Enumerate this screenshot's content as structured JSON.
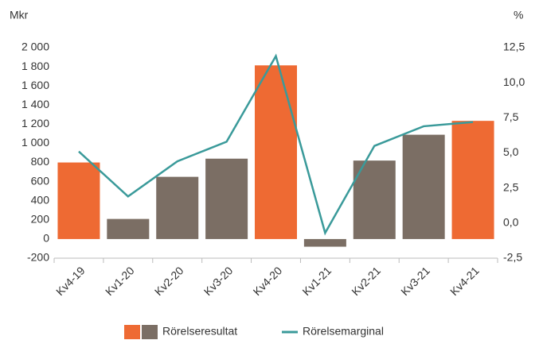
{
  "chart_data": {
    "type": "bar_line",
    "y_label": "Mkr",
    "y2_label": "%",
    "categories": [
      "Kv4-19",
      "Kv1-20",
      "Kv2-20",
      "Kv3-20",
      "Kv4-20",
      "Kv1-21",
      "Kv2-21",
      "Kv3-21",
      "Kv4-21"
    ],
    "series": [
      {
        "name": "Rörelseresultat",
        "type": "bar",
        "values": [
          800,
          210,
          650,
          840,
          1815,
          -80,
          820,
          1090,
          1235
        ],
        "colors": [
          "#ee6a33",
          "#7b6e64",
          "#7b6e64",
          "#7b6e64",
          "#ee6a33",
          "#7b6e64",
          "#7b6e64",
          "#7b6e64",
          "#ee6a33"
        ]
      },
      {
        "name": "Rörelsemarginal",
        "type": "line",
        "axis": "y2",
        "color": "#3a9a9a",
        "values": [
          5.1,
          1.9,
          4.4,
          5.8,
          11.9,
          -0.7,
          5.5,
          6.9,
          7.2
        ]
      }
    ],
    "ylim": [
      -200,
      2000
    ],
    "yticks": [
      -200,
      0,
      200,
      400,
      600,
      800,
      {
        "value": 1000,
        "label": "1 000"
      },
      {
        "value": 1200,
        "label": "1 200"
      },
      {
        "value": 1400,
        "label": "1 400"
      },
      {
        "value": 1600,
        "label": "1 600"
      },
      {
        "value": 1800,
        "label": "1 800"
      },
      {
        "value": 2000,
        "label": "2 000"
      }
    ],
    "y2lim": [
      -2.5,
      12.5
    ],
    "y2ticks": [
      {
        "value": -2.5,
        "label": "-2,5"
      },
      {
        "value": 0,
        "label": "0,0"
      },
      {
        "value": 2.5,
        "label": "2,5"
      },
      {
        "value": 5,
        "label": "5,0"
      },
      {
        "value": 7.5,
        "label": "7,5"
      },
      {
        "value": 10,
        "label": "10,0"
      },
      {
        "value": 12.5,
        "label": "12,5"
      }
    ]
  }
}
